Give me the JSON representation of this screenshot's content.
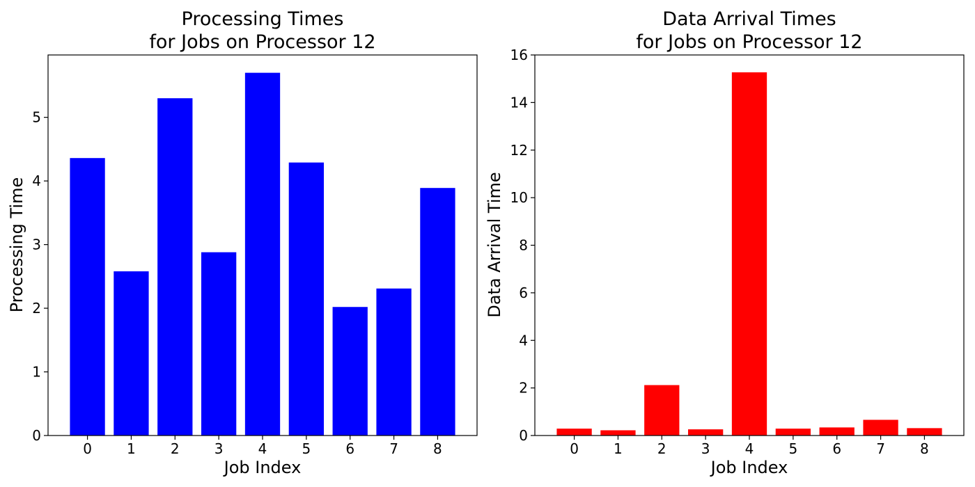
{
  "chart_data": [
    {
      "type": "bar",
      "title_lines": [
        "Processing Times",
        "for Jobs on Processor 12"
      ],
      "xlabel": "Job Index",
      "ylabel": "Processing Time",
      "categories": [
        "0",
        "1",
        "2",
        "3",
        "4",
        "5",
        "6",
        "7",
        "8"
      ],
      "values": [
        4.36,
        2.58,
        5.3,
        2.88,
        5.7,
        4.29,
        2.02,
        2.31,
        3.89
      ],
      "ylim": [
        0,
        5.98
      ],
      "yticks": [
        0,
        1,
        2,
        3,
        4,
        5
      ],
      "color": "#0000ff",
      "grid": false
    },
    {
      "type": "bar",
      "title_lines": [
        "Data Arrival Times",
        "for Jobs on Processor 12"
      ],
      "xlabel": "Job Index",
      "ylabel": "Data Arrival Time",
      "categories": [
        "0",
        "1",
        "2",
        "3",
        "4",
        "5",
        "6",
        "7",
        "8"
      ],
      "values": [
        0.29,
        0.22,
        2.12,
        0.26,
        15.27,
        0.29,
        0.34,
        0.66,
        0.31
      ],
      "ylim": [
        0,
        16
      ],
      "yticks": [
        0,
        2,
        4,
        6,
        8,
        10,
        12,
        14,
        16
      ],
      "color": "#ff0000",
      "grid": false
    }
  ]
}
